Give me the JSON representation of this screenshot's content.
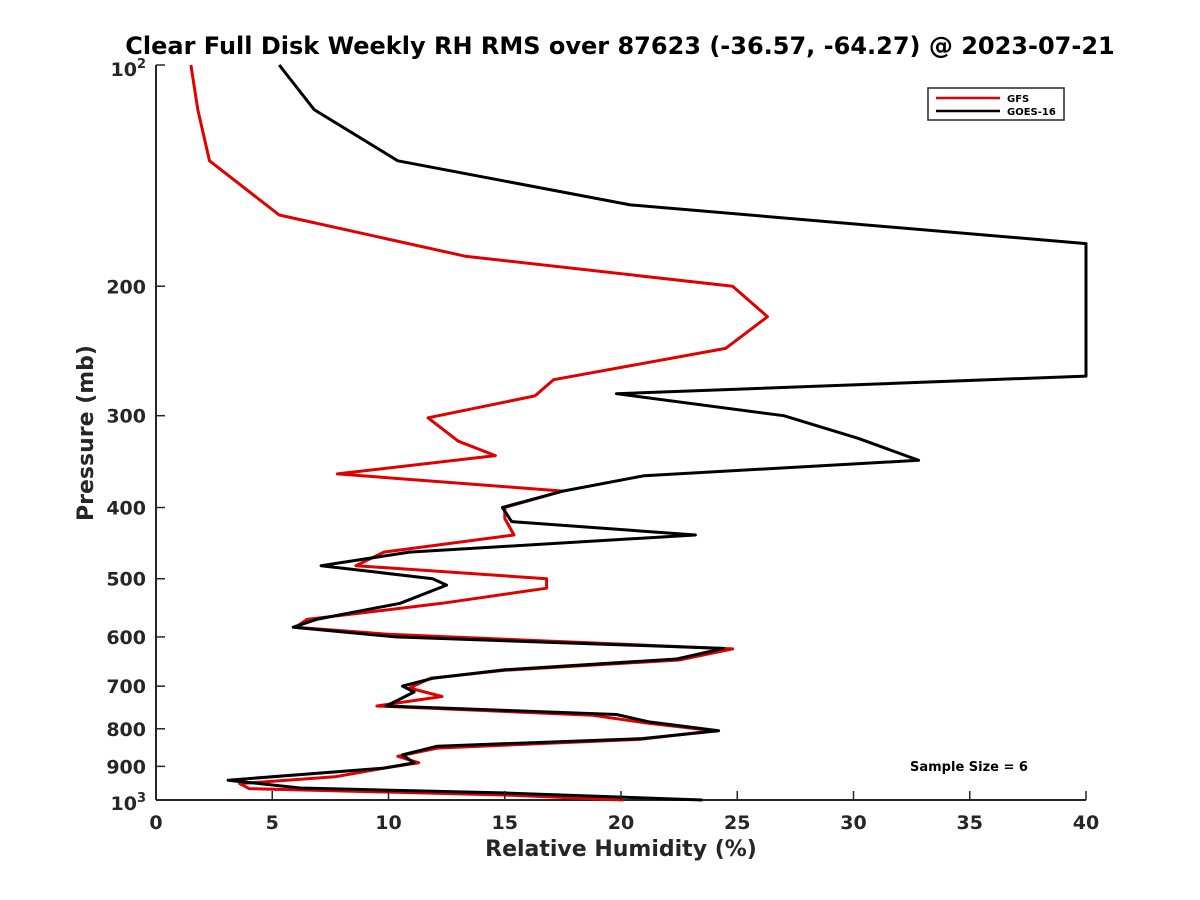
{
  "chart_data": {
    "type": "line",
    "title": "Clear Full Disk Weekly RH RMS over 87623 (-36.57, -64.27) @ 2023-07-21",
    "xlabel": "Relative Humidity (%)",
    "ylabel": "Pressure (mb)",
    "xlim": [
      0,
      40
    ],
    "ylim": [
      100,
      1000
    ],
    "y_scale": "log",
    "y_reversed": true,
    "grid": false,
    "legend_position": "top-right",
    "xticks": [
      "0",
      "5",
      "10",
      "15",
      "20",
      "25",
      "30",
      "35",
      "40"
    ],
    "yticks": [
      {
        "value": 200,
        "label": "200"
      },
      {
        "value": 300,
        "label": "300"
      },
      {
        "value": 400,
        "label": "400"
      },
      {
        "value": 500,
        "label": "500"
      },
      {
        "value": 600,
        "label": "600"
      },
      {
        "value": 700,
        "label": "700"
      },
      {
        "value": 800,
        "label": "800"
      },
      {
        "value": 900,
        "label": "900"
      }
    ],
    "ytick_top": {
      "base": "10",
      "exp": "2"
    },
    "ytick_bottom": {
      "base": "10",
      "exp": "3"
    },
    "annotation": "Sample Size = 6",
    "series": [
      {
        "name": "GFS",
        "color": "#e00000",
        "points": [
          [
            1.5,
            100
          ],
          [
            1.8,
            115
          ],
          [
            2.3,
            135
          ],
          [
            5.3,
            160
          ],
          [
            13.3,
            182
          ],
          [
            24.8,
            200
          ],
          [
            26.3,
            220
          ],
          [
            24.5,
            243
          ],
          [
            17.1,
            268
          ],
          [
            16.3,
            282
          ],
          [
            11.7,
            302
          ],
          [
            13.0,
            325
          ],
          [
            14.6,
            340
          ],
          [
            7.8,
            360
          ],
          [
            17.5,
            380
          ],
          [
            15.0,
            400
          ],
          [
            15.0,
            414
          ],
          [
            15.4,
            436
          ],
          [
            9.8,
            460
          ],
          [
            8.6,
            480
          ],
          [
            16.8,
            500
          ],
          [
            16.8,
            515
          ],
          [
            12.3,
            540
          ],
          [
            6.5,
            568
          ],
          [
            6.0,
            582
          ],
          [
            10.0,
            595
          ],
          [
            24.8,
            623
          ],
          [
            22.5,
            645
          ],
          [
            15.0,
            666
          ],
          [
            11.8,
            683
          ],
          [
            10.9,
            704
          ],
          [
            12.3,
            723
          ],
          [
            9.5,
            745
          ],
          [
            18.8,
            767
          ],
          [
            21.0,
            785
          ],
          [
            24.0,
            805
          ],
          [
            20.8,
            827
          ],
          [
            12.1,
            850
          ],
          [
            10.4,
            872
          ],
          [
            11.3,
            890
          ],
          [
            9.8,
            905
          ],
          [
            7.7,
            930
          ],
          [
            3.6,
            950
          ],
          [
            4.0,
            965
          ],
          [
            15.3,
            985
          ],
          [
            20.1,
            1000
          ]
        ]
      },
      {
        "name": "GOES-16",
        "color": "#000000",
        "points": [
          [
            5.3,
            100
          ],
          [
            6.8,
            115
          ],
          [
            10.4,
            135
          ],
          [
            20.4,
            155
          ],
          [
            40.0,
            175
          ],
          [
            40.0,
            265
          ],
          [
            19.8,
            280
          ],
          [
            27.0,
            300
          ],
          [
            30.2,
            322
          ],
          [
            32.8,
            345
          ],
          [
            21.0,
            362
          ],
          [
            17.5,
            380
          ],
          [
            14.9,
            400
          ],
          [
            15.3,
            418
          ],
          [
            23.2,
            436
          ],
          [
            10.9,
            460
          ],
          [
            7.1,
            480
          ],
          [
            11.9,
            500
          ],
          [
            12.5,
            510
          ],
          [
            10.5,
            540
          ],
          [
            6.9,
            568
          ],
          [
            5.9,
            582
          ],
          [
            10.3,
            600
          ],
          [
            24.4,
            622
          ],
          [
            22.4,
            643
          ],
          [
            15.0,
            665
          ],
          [
            11.9,
            683
          ],
          [
            10.6,
            700
          ],
          [
            11.1,
            713
          ],
          [
            9.9,
            745
          ],
          [
            19.8,
            765
          ],
          [
            21.2,
            783
          ],
          [
            24.2,
            805
          ],
          [
            20.9,
            825
          ],
          [
            12.1,
            845
          ],
          [
            10.6,
            868
          ],
          [
            11.1,
            890
          ],
          [
            9.8,
            905
          ],
          [
            3.1,
            940
          ],
          [
            6.2,
            963
          ],
          [
            14.9,
            978
          ],
          [
            23.5,
            1000
          ]
        ]
      }
    ]
  }
}
